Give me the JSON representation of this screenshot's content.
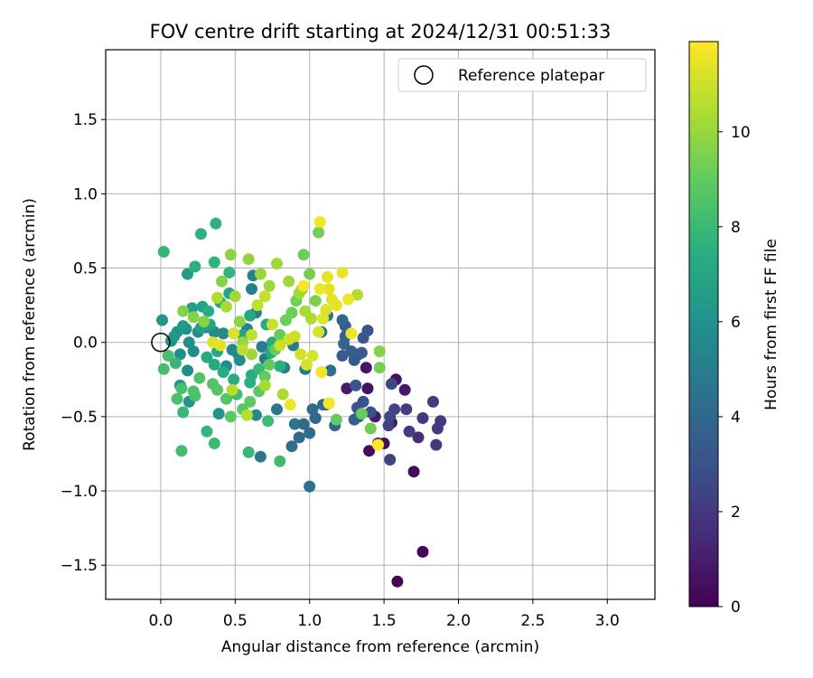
{
  "chart_data": {
    "type": "scatter",
    "title": "FOV centre drift starting at 2024/12/31 00:51:33",
    "xlabel": "Angular distance from reference (arcmin)",
    "ylabel": "Rotation from reference (arcmin)",
    "xlim": [
      -0.37,
      3.32
    ],
    "ylim": [
      -1.73,
      1.97
    ],
    "xticks": [
      0.0,
      0.5,
      1.0,
      1.5,
      2.0,
      2.5,
      3.0
    ],
    "xtick_labels": [
      "0.0",
      "0.5",
      "1.0",
      "1.5",
      "2.0",
      "2.5",
      "3.0"
    ],
    "yticks": [
      -1.5,
      -1.0,
      -0.5,
      0.0,
      0.5,
      1.0,
      1.5
    ],
    "ytick_labels": [
      "−1.5",
      "−1.0",
      "−0.5",
      "0.0",
      "0.5",
      "1.0",
      "1.5"
    ],
    "grid": true,
    "legend": {
      "position": "top-right",
      "entries": [
        "Reference platepar"
      ]
    },
    "reference_point": {
      "x": 0.0,
      "y": 0.0,
      "label": "Reference platepar"
    },
    "colorbar": {
      "label": "Hours from first FF file",
      "colormap": "viridis",
      "range": [
        0,
        11.9
      ],
      "ticks": [
        0,
        2,
        4,
        6,
        8,
        10
      ],
      "tick_labels": [
        "0",
        "2",
        "4",
        "6",
        "8",
        "10"
      ]
    },
    "points": [
      [
        1.59,
        -1.61,
        0.1
      ],
      [
        1.76,
        -1.41,
        0.2
      ],
      [
        1.7,
        -0.87,
        0.3
      ],
      [
        1.4,
        -0.73,
        0.4
      ],
      [
        1.5,
        -0.68,
        0.5
      ],
      [
        1.55,
        -0.54,
        0.6
      ],
      [
        1.64,
        -0.32,
        0.8
      ],
      [
        1.58,
        -0.25,
        0.5
      ],
      [
        1.39,
        -0.31,
        0.6
      ],
      [
        1.25,
        -0.31,
        0.9
      ],
      [
        1.38,
        -0.17,
        0.7
      ],
      [
        1.44,
        -0.5,
        0.9
      ],
      [
        1.46,
        -0.68,
        1.0
      ],
      [
        1.73,
        -0.64,
        1.5
      ],
      [
        1.85,
        -0.69,
        2.0
      ],
      [
        1.86,
        -0.58,
        2.0
      ],
      [
        1.88,
        -0.53,
        2.0
      ],
      [
        1.76,
        -0.51,
        2.0
      ],
      [
        1.83,
        -0.4,
        2.1
      ],
      [
        1.67,
        -0.6,
        2.2
      ],
      [
        1.53,
        -0.56,
        2.3
      ],
      [
        1.54,
        -0.5,
        2.5
      ],
      [
        1.57,
        -0.45,
        2.5
      ],
      [
        1.55,
        -0.28,
        2.6
      ],
      [
        1.65,
        -0.45,
        2.1
      ],
      [
        1.54,
        -0.79,
        2.4
      ],
      [
        1.41,
        -0.47,
        3.0
      ],
      [
        1.36,
        -0.4,
        3.0
      ],
      [
        1.32,
        -0.44,
        3.0
      ],
      [
        1.31,
        -0.29,
        3.1
      ],
      [
        1.39,
        0.08,
        3.0
      ],
      [
        1.36,
        0.03,
        3.2
      ],
      [
        1.33,
        -0.08,
        3.2
      ],
      [
        1.3,
        -0.12,
        3.3
      ],
      [
        1.28,
        -0.06,
        3.5
      ],
      [
        1.22,
        -0.09,
        3.5
      ],
      [
        1.35,
        -0.07,
        3.4
      ],
      [
        1.24,
        0.11,
        3.6
      ],
      [
        1.24,
        0.04,
        3.7
      ],
      [
        1.22,
        0.15,
        3.8
      ],
      [
        1.23,
        -0.01,
        3.8
      ],
      [
        1.3,
        -0.52,
        3.6
      ],
      [
        1.33,
        -0.5,
        3.7
      ],
      [
        1.17,
        -0.56,
        3.9
      ],
      [
        1.04,
        -0.51,
        4.0
      ],
      [
        1.09,
        -0.42,
        4.1
      ],
      [
        1.02,
        -0.45,
        4.1
      ],
      [
        1.0,
        -0.61,
        4.2
      ],
      [
        0.93,
        -0.64,
        4.1
      ],
      [
        0.88,
        -0.7,
        4.3
      ],
      [
        0.9,
        -0.55,
        4.5
      ],
      [
        0.96,
        -0.55,
        4.0
      ],
      [
        1.0,
        -0.97,
        4.4
      ],
      [
        0.67,
        -0.77,
        4.6
      ],
      [
        0.78,
        -0.45,
        4.6
      ],
      [
        1.11,
        -0.42,
        4.2
      ],
      [
        1.14,
        -0.19,
        4.3
      ],
      [
        1.12,
        0.18,
        4.7
      ],
      [
        1.08,
        0.07,
        4.8
      ],
      [
        0.97,
        -0.18,
        4.8
      ],
      [
        0.89,
        -0.02,
        4.9
      ],
      [
        0.83,
        -0.17,
        5.0
      ],
      [
        0.7,
        -0.11,
        5.0
      ],
      [
        0.68,
        -0.03,
        5.1
      ],
      [
        0.64,
        0.2,
        5.1
      ],
      [
        0.61,
        0.36,
        5.2
      ],
      [
        0.62,
        0.45,
        5.2
      ],
      [
        0.58,
        0.09,
        5.3
      ],
      [
        0.52,
        -0.08,
        5.4
      ],
      [
        0.48,
        -0.05,
        5.5
      ],
      [
        0.42,
        0.06,
        5.5
      ],
      [
        0.36,
        0.07,
        5.6
      ],
      [
        0.3,
        0.1,
        5.6
      ],
      [
        0.25,
        0.07,
        5.7
      ],
      [
        0.22,
        -0.06,
        5.8
      ],
      [
        0.18,
        -0.19,
        5.8
      ],
      [
        0.19,
        0.0,
        5.9
      ],
      [
        0.17,
        0.09,
        5.9
      ],
      [
        0.11,
        0.07,
        6.0
      ],
      [
        0.07,
        0.01,
        6.0
      ],
      [
        0.13,
        -0.08,
        5.9
      ],
      [
        0.13,
        -0.29,
        6.0
      ],
      [
        0.19,
        -0.4,
        6.1
      ],
      [
        0.39,
        -0.48,
        6.1
      ],
      [
        0.64,
        -0.49,
        5.5
      ],
      [
        0.44,
        -0.16,
        5.6
      ],
      [
        0.53,
        -0.12,
        5.7
      ],
      [
        0.01,
        0.15,
        6.2
      ],
      [
        0.09,
        0.04,
        6.3
      ],
      [
        0.15,
        0.11,
        6.3
      ],
      [
        0.18,
        0.46,
        6.5
      ],
      [
        0.21,
        0.23,
        6.6
      ],
      [
        0.27,
        0.1,
        6.7
      ],
      [
        0.28,
        0.24,
        6.8
      ],
      [
        0.33,
        0.12,
        6.9
      ],
      [
        0.4,
        0.27,
        7.0
      ],
      [
        0.46,
        0.33,
        7.0
      ],
      [
        0.38,
        -0.06,
        7.1
      ],
      [
        0.31,
        -0.1,
        7.2
      ],
      [
        0.36,
        -0.15,
        7.2
      ],
      [
        0.42,
        -0.2,
        7.3
      ],
      [
        0.49,
        -0.25,
        7.3
      ],
      [
        0.55,
        0.05,
        7.0
      ],
      [
        0.61,
        -0.22,
        7.4
      ],
      [
        0.74,
        -0.07,
        7.4
      ],
      [
        0.8,
        -0.16,
        7.5
      ],
      [
        0.23,
        0.51,
        7.5
      ],
      [
        0.27,
        0.73,
        7.6
      ],
      [
        0.37,
        0.8,
        7.6
      ],
      [
        0.36,
        0.54,
        7.7
      ],
      [
        0.46,
        0.47,
        7.7
      ],
      [
        0.32,
        0.21,
        7.4
      ],
      [
        0.6,
        0.18,
        7.1
      ],
      [
        0.71,
        0.12,
        7.2
      ],
      [
        0.75,
        0.0,
        7.3
      ],
      [
        0.02,
        0.61,
        7.8
      ],
      [
        0.31,
        -0.6,
        7.8
      ],
      [
        0.6,
        -0.27,
        7.5
      ],
      [
        0.1,
        -0.14,
        7.9
      ],
      [
        0.15,
        -0.47,
        7.9
      ],
      [
        0.36,
        -0.68,
        8.0
      ],
      [
        0.59,
        -0.74,
        8.0
      ],
      [
        0.8,
        -0.8,
        8.1
      ],
      [
        0.72,
        -0.53,
        8.1
      ],
      [
        0.66,
        -0.18,
        8.0
      ],
      [
        0.51,
        -0.35,
        8.1
      ],
      [
        0.14,
        -0.73,
        8.2
      ],
      [
        0.02,
        -0.18,
        8.3
      ],
      [
        0.05,
        -0.09,
        8.3
      ],
      [
        0.11,
        -0.38,
        8.4
      ],
      [
        0.14,
        -0.31,
        8.4
      ],
      [
        0.22,
        -0.33,
        8.5
      ],
      [
        0.23,
        -0.36,
        8.5
      ],
      [
        0.26,
        -0.24,
        8.6
      ],
      [
        0.35,
        -0.28,
        8.6
      ],
      [
        0.38,
        -0.32,
        8.7
      ],
      [
        0.44,
        -0.38,
        8.7
      ],
      [
        0.47,
        -0.5,
        8.8
      ],
      [
        0.55,
        -0.45,
        8.8
      ],
      [
        0.6,
        -0.4,
        8.9
      ],
      [
        0.66,
        -0.33,
        8.9
      ],
      [
        0.7,
        -0.23,
        9.0
      ],
      [
        0.73,
        -0.15,
        9.0
      ],
      [
        0.77,
        -0.05,
        9.1
      ],
      [
        0.8,
        0.05,
        9.1
      ],
      [
        0.84,
        0.15,
        9.2
      ],
      [
        0.88,
        0.2,
        9.2
      ],
      [
        0.91,
        0.28,
        9.3
      ],
      [
        0.95,
        0.36,
        9.3
      ],
      [
        1.0,
        0.46,
        9.4
      ],
      [
        0.96,
        0.59,
        9.2
      ],
      [
        1.06,
        0.74,
        9.3
      ],
      [
        1.18,
        -0.52,
        9.0
      ],
      [
        1.35,
        -0.48,
        9.1
      ],
      [
        1.41,
        -0.58,
        9.2
      ],
      [
        1.47,
        -0.17,
        9.4
      ],
      [
        1.47,
        -0.06,
        9.6
      ],
      [
        1.13,
        -0.41,
        9.5
      ],
      [
        1.04,
        0.28,
        9.5
      ],
      [
        0.15,
        0.21,
        9.6
      ],
      [
        0.22,
        0.17,
        9.6
      ],
      [
        0.29,
        0.14,
        9.7
      ],
      [
        0.41,
        0.41,
        9.7
      ],
      [
        0.47,
        0.59,
        9.8
      ],
      [
        0.53,
        0.14,
        9.8
      ],
      [
        0.59,
        0.56,
        9.9
      ],
      [
        0.67,
        0.46,
        10.0
      ],
      [
        0.73,
        0.38,
        10.1
      ],
      [
        0.78,
        0.53,
        10.1
      ],
      [
        0.86,
        0.41,
        10.2
      ],
      [
        0.93,
        0.33,
        10.2
      ],
      [
        0.97,
        0.21,
        10.3
      ],
      [
        1.01,
        0.16,
        10.4
      ],
      [
        0.38,
        0.3,
        10.4
      ],
      [
        0.44,
        0.24,
        10.3
      ],
      [
        0.5,
        0.31,
        10.2
      ],
      [
        0.55,
        0.0,
        10.0
      ],
      [
        0.61,
        -0.08,
        10.1
      ],
      [
        0.7,
        -0.29,
        10.3
      ],
      [
        0.82,
        -0.35,
        10.4
      ],
      [
        1.32,
        0.32,
        10.5
      ],
      [
        0.58,
        -0.49,
        10.6
      ],
      [
        0.48,
        -0.32,
        10.6
      ],
      [
        0.55,
        -0.05,
        10.7
      ],
      [
        0.61,
        0.05,
        10.7
      ],
      [
        0.65,
        0.25,
        10.8
      ],
      [
        0.7,
        0.31,
        10.8
      ],
      [
        0.75,
        0.12,
        10.9
      ],
      [
        0.8,
        -0.02,
        10.9
      ],
      [
        0.86,
        0.02,
        11.0
      ],
      [
        0.9,
        0.04,
        11.0
      ],
      [
        0.94,
        -0.08,
        11.1
      ],
      [
        0.98,
        -0.15,
        11.1
      ],
      [
        1.02,
        -0.09,
        11.2
      ],
      [
        1.06,
        0.07,
        11.2
      ],
      [
        1.09,
        0.16,
        11.3
      ],
      [
        1.11,
        0.22,
        11.3
      ],
      [
        1.13,
        0.36,
        11.4
      ],
      [
        1.15,
        0.29,
        11.4
      ],
      [
        1.18,
        0.25,
        11.5
      ],
      [
        1.22,
        0.47,
        11.5
      ],
      [
        1.26,
        0.29,
        11.6
      ],
      [
        1.28,
        0.06,
        11.6
      ],
      [
        1.07,
        0.81,
        11.7
      ],
      [
        0.96,
        0.38,
        11.7
      ],
      [
        1.07,
        0.36,
        11.6
      ],
      [
        1.12,
        0.44,
        11.5
      ],
      [
        0.87,
        -0.42,
        11.6
      ],
      [
        1.13,
        -0.41,
        11.8
      ],
      [
        1.08,
        -0.2,
        11.7
      ],
      [
        1.46,
        -0.69,
        11.9
      ],
      [
        0.4,
        -0.02,
        11.4
      ],
      [
        0.35,
        0.0,
        11.3
      ],
      [
        0.49,
        0.06,
        11.2
      ]
    ]
  }
}
